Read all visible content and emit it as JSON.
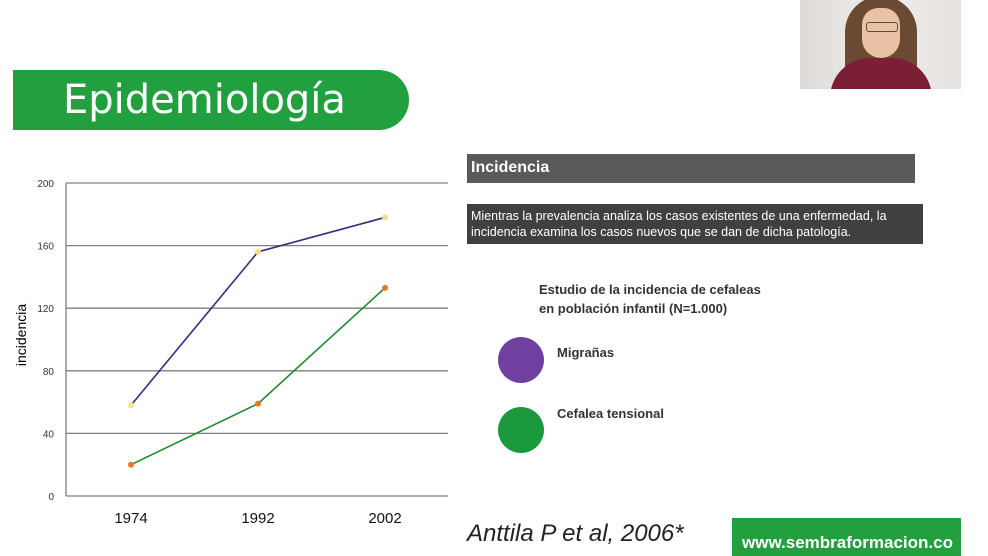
{
  "slide": {
    "title": "Epidemiología",
    "section_header": "Incidencia",
    "description": "Mientras la prevalencia analiza los casos existentes de una enfermedad, la incidencia examina los casos nuevos que se dan de dicha patología.",
    "study_title_line1": "Estudio de la incidencia de cefaleas",
    "study_title_line2": "en población infantil (N=1.000)",
    "legend": [
      {
        "label": "Migrañas",
        "color": "#7040a0"
      },
      {
        "label": "Cefalea tensional",
        "color": "#1a9a3c"
      }
    ],
    "citation": "Anttila P et al, 2006*",
    "website": "www.sembraformacion.co"
  },
  "colors": {
    "brand_green": "#22a040",
    "migranas_line": "#3b2a80",
    "tensional_line": "#1e8a30",
    "migranas_point": "#f5e08a",
    "tensional_point": "#e87a20"
  },
  "chart_data": {
    "type": "line",
    "ylabel": "incidencia",
    "xlabel": "",
    "title": "",
    "categories": [
      "1974",
      "1992",
      "2002"
    ],
    "ylim": [
      0,
      200
    ],
    "yticks": [
      "0",
      "40",
      "80",
      "120",
      "160",
      "200"
    ],
    "grid": true,
    "series": [
      {
        "name": "Migrañas",
        "values": [
          58,
          156,
          178
        ]
      },
      {
        "name": "Cefalea tensional",
        "values": [
          20,
          59,
          133
        ]
      }
    ]
  }
}
